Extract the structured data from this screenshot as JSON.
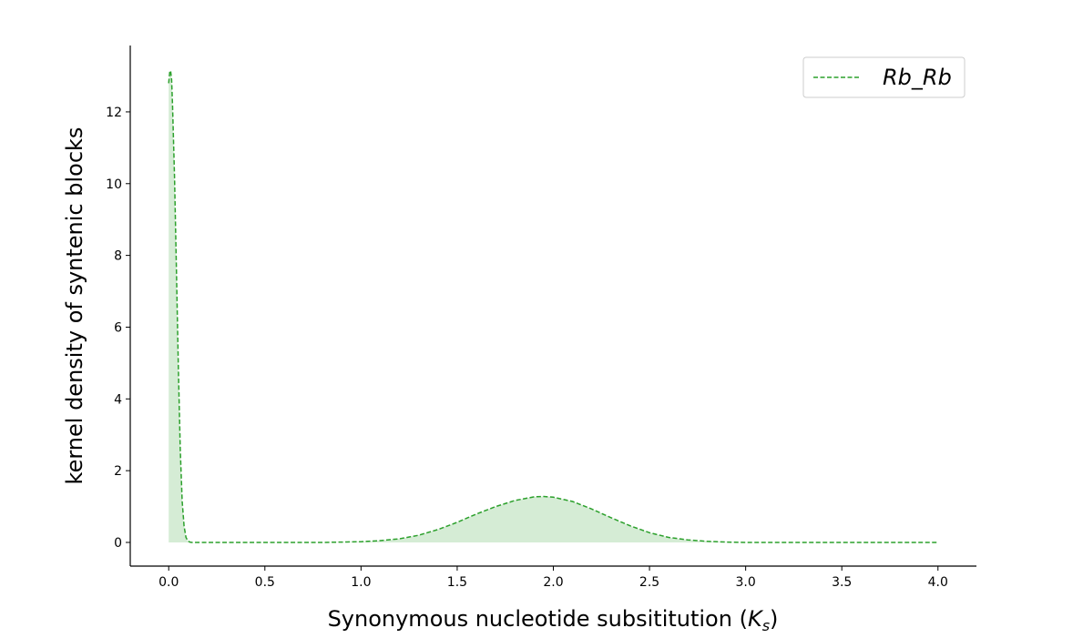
{
  "chart_data": {
    "type": "area",
    "xlabel_main": "Synonymous nucleotide subsititution (",
    "xlabel_symbol": "K",
    "xlabel_subscript": "s",
    "xlabel_close": ")",
    "ylabel": "kernel density of syntenic blocks",
    "xlim": [
      -0.2,
      4.2
    ],
    "ylim": [
      -0.66,
      13.85
    ],
    "x_ticks": [
      0.0,
      0.5,
      1.0,
      1.5,
      2.0,
      2.5,
      3.0,
      3.5,
      4.0
    ],
    "x_tick_labels": [
      "0.0",
      "0.5",
      "1.0",
      "1.5",
      "2.0",
      "2.5",
      "3.0",
      "3.5",
      "4.0"
    ],
    "y_ticks": [
      0,
      2,
      4,
      6,
      8,
      10,
      12
    ],
    "y_tick_labels": [
      "0",
      "2",
      "4",
      "6",
      "8",
      "10",
      "12"
    ],
    "grid": false,
    "legend_position": "top-right",
    "series": [
      {
        "name": "Rb_Rb",
        "color": "#2ca02c",
        "fill_color": "#2ca02c",
        "line_style": "dashed",
        "x": [
          0.0,
          0.005,
          0.01,
          0.015,
          0.02,
          0.03,
          0.04,
          0.05,
          0.06,
          0.07,
          0.08,
          0.09,
          0.1,
          0.11,
          0.12,
          0.15,
          0.2,
          0.5,
          0.8,
          1.0,
          1.1,
          1.2,
          1.3,
          1.4,
          1.5,
          1.6,
          1.7,
          1.8,
          1.9,
          1.95,
          2.0,
          2.1,
          2.2,
          2.3,
          2.4,
          2.5,
          2.6,
          2.7,
          2.8,
          2.9,
          3.0,
          3.2,
          3.5,
          4.0
        ],
        "y": [
          12.8,
          13.1,
          13.15,
          12.9,
          12.2,
          10.2,
          7.6,
          4.9,
          2.6,
          1.15,
          0.45,
          0.14,
          0.04,
          0.01,
          0.0,
          0.0,
          0.0,
          0.0,
          0.0,
          0.02,
          0.05,
          0.1,
          0.2,
          0.36,
          0.56,
          0.79,
          1.0,
          1.17,
          1.27,
          1.28,
          1.26,
          1.14,
          0.93,
          0.69,
          0.46,
          0.27,
          0.14,
          0.07,
          0.03,
          0.01,
          0.0,
          0.0,
          0.0,
          0.0
        ]
      }
    ]
  }
}
